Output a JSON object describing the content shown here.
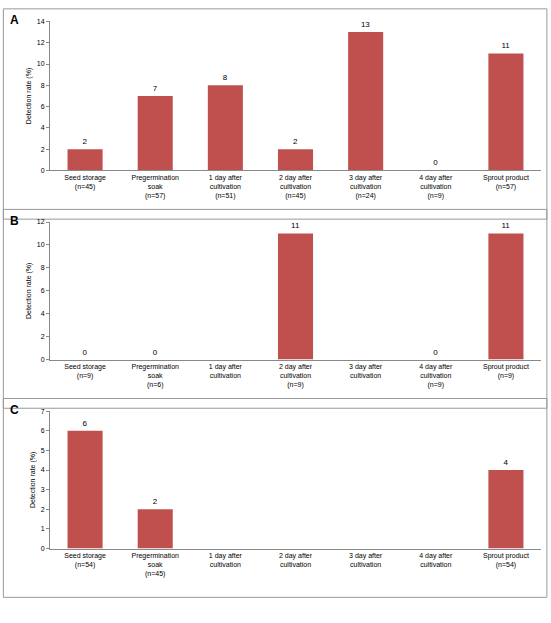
{
  "chart_data": [
    {
      "type": "bar",
      "title": "A",
      "y_label": "Detection rate (%)",
      "categories": [
        "Seed storage (n=45)",
        "Pregermination soak (n=57)",
        "1 day after cultivation (n=51)",
        "2 day after cultivation (n=45)",
        "3 day after cultivation (n=24)",
        "4 day after cultivation (n=9)",
        "Sprout product (n=57)"
      ],
      "values": [
        2,
        7,
        8,
        2,
        13,
        0,
        11
      ],
      "color": "#c0504d",
      "ylim": [
        0,
        14
      ],
      "yticks": [
        0,
        2,
        4,
        6,
        8,
        10,
        12,
        14
      ],
      "grid": false,
      "data_labels": true
    },
    {
      "type": "bar",
      "title": "B",
      "y_label": "Detection rate (%)",
      "categories": [
        "Seed storage (n=9)",
        "Pregermination soak (n=6)",
        "1 day after cultivation",
        "2 day after cultivation (n=9)",
        "3 day after cultivation",
        "4 day after cultivation (n=9)",
        "Sprout product (n=9)"
      ],
      "values": [
        0,
        0,
        null,
        11,
        null,
        0,
        11
      ],
      "color": "#c0504d",
      "ylim": [
        0,
        12
      ],
      "yticks": [
        0,
        2,
        4,
        6,
        8,
        10,
        12
      ],
      "grid": false,
      "data_labels": true
    },
    {
      "type": "bar",
      "title": "C",
      "y_label": "Detection rate (%)",
      "categories": [
        "Seed storage (n=54)",
        "Pregermination soak (n=45)",
        "1 day after cultivation",
        "2 day after cultivation",
        "3 day after cultivation",
        "4 day after cultivation",
        "Sprout product (n=54)"
      ],
      "values": [
        6,
        2,
        null,
        null,
        null,
        null,
        4
      ],
      "color": "#c0504d",
      "ylim": [
        0,
        7
      ],
      "yticks": [
        0,
        1,
        2,
        3,
        4,
        5,
        6,
        7
      ],
      "grid": false,
      "data_labels": true
    }
  ]
}
